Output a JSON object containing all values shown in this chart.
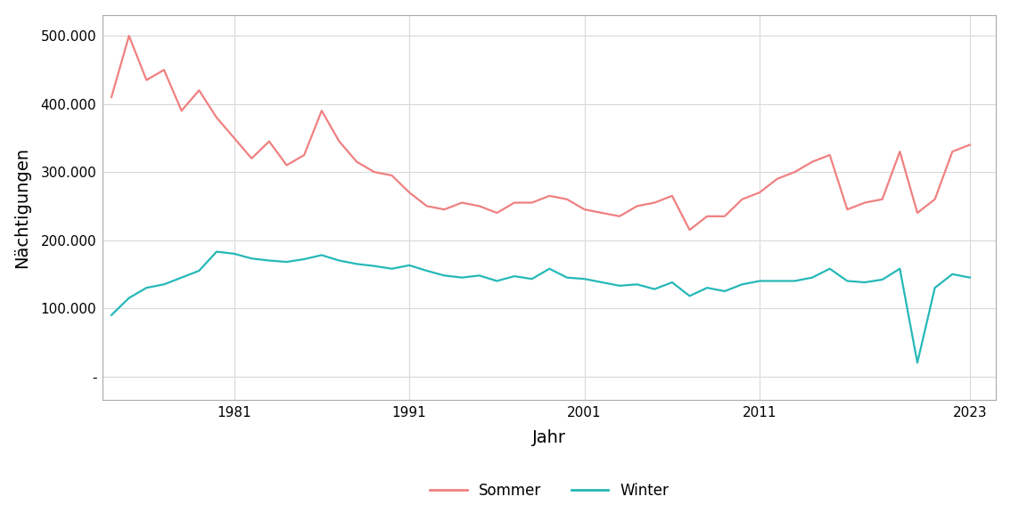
{
  "sommer": {
    "years": [
      1974,
      1975,
      1976,
      1977,
      1978,
      1979,
      1980,
      1981,
      1982,
      1983,
      1984,
      1985,
      1986,
      1987,
      1988,
      1989,
      1990,
      1991,
      1992,
      1993,
      1994,
      1995,
      1996,
      1997,
      1998,
      1999,
      2000,
      2001,
      2002,
      2003,
      2004,
      2005,
      2006,
      2007,
      2008,
      2009,
      2010,
      2011,
      2012,
      2013,
      2014,
      2015,
      2016,
      2017,
      2018,
      2019,
      2020,
      2021,
      2022,
      2023
    ],
    "values": [
      410000,
      500000,
      435000,
      450000,
      390000,
      420000,
      380000,
      350000,
      320000,
      345000,
      310000,
      325000,
      390000,
      345000,
      315000,
      300000,
      295000,
      270000,
      250000,
      245000,
      255000,
      250000,
      240000,
      255000,
      255000,
      265000,
      260000,
      245000,
      240000,
      235000,
      250000,
      255000,
      265000,
      215000,
      235000,
      235000,
      260000,
      270000,
      290000,
      300000,
      315000,
      325000,
      245000,
      255000,
      260000,
      330000,
      240000,
      260000,
      330000,
      340000
    ]
  },
  "winter": {
    "years": [
      1974,
      1975,
      1976,
      1977,
      1978,
      1979,
      1980,
      1981,
      1982,
      1983,
      1984,
      1985,
      1986,
      1987,
      1988,
      1989,
      1990,
      1991,
      1992,
      1993,
      1994,
      1995,
      1996,
      1997,
      1998,
      1999,
      2000,
      2001,
      2002,
      2003,
      2004,
      2005,
      2006,
      2007,
      2008,
      2009,
      2010,
      2011,
      2012,
      2013,
      2014,
      2015,
      2016,
      2017,
      2018,
      2019,
      2020,
      2021,
      2022,
      2023
    ],
    "values": [
      90000,
      115000,
      130000,
      135000,
      145000,
      155000,
      183000,
      180000,
      173000,
      170000,
      168000,
      172000,
      178000,
      170000,
      165000,
      162000,
      158000,
      163000,
      155000,
      148000,
      145000,
      148000,
      140000,
      147000,
      143000,
      158000,
      145000,
      143000,
      138000,
      133000,
      135000,
      128000,
      138000,
      118000,
      130000,
      125000,
      135000,
      140000,
      140000,
      140000,
      145000,
      158000,
      140000,
      138000,
      142000,
      158000,
      20000,
      130000,
      150000,
      145000
    ]
  },
  "sommer_color": "#F08080",
  "winter_color": "#26B8B8",
  "ylabel": "Nächtigungen",
  "xlabel": "Jahr",
  "ytick_values": [
    0,
    100000,
    200000,
    300000,
    400000,
    500000
  ],
  "ytick_labels": [
    "-",
    "100.000",
    "200.000",
    "300.000",
    "400.000",
    "500.000"
  ],
  "xtick_values": [
    1981,
    1991,
    2001,
    2011,
    2023
  ],
  "xlim": [
    1973.5,
    2024.5
  ],
  "ylim": [
    -35000,
    530000
  ],
  "legend_labels": [
    "Sommer",
    "Winter"
  ],
  "background_color": "#ffffff",
  "panel_border_color": "#aaaaaa",
  "grid_color": "#d9d9d9",
  "line_width": 1.6,
  "tick_fontsize": 11,
  "label_fontsize": 14,
  "legend_fontsize": 12
}
